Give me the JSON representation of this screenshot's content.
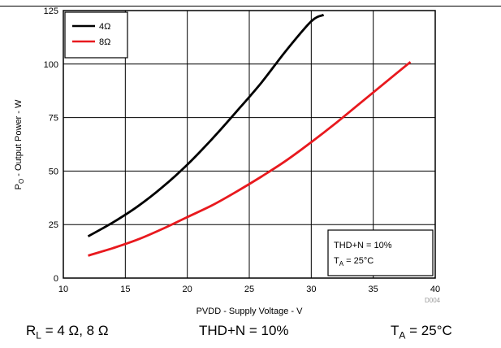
{
  "chart_data": {
    "type": "line",
    "xlabel": "PVDD - Supply Voltage - V",
    "ylabel_parts": [
      "P",
      "O",
      " - Output Power - W"
    ],
    "xlim": [
      10,
      40
    ],
    "ylim": [
      0,
      125
    ],
    "x_ticks": [
      10,
      15,
      20,
      25,
      30,
      35,
      40
    ],
    "y_ticks": [
      0,
      25,
      50,
      75,
      100,
      125
    ],
    "grid": true,
    "legend_position": "top-left",
    "series": [
      {
        "name": "4Ω",
        "color": "#000000",
        "x": [
          12,
          14,
          16,
          18,
          20,
          22,
          24,
          26,
          28,
          30,
          31
        ],
        "y": [
          19.5,
          26,
          33.5,
          42.5,
          53,
          65,
          78,
          91.5,
          106.5,
          120,
          123
        ]
      },
      {
        "name": "8Ω",
        "color": "#e8191e",
        "x": [
          12,
          14,
          16,
          18,
          20,
          22,
          24,
          26,
          28,
          30,
          32,
          34,
          36,
          38
        ],
        "y": [
          10.5,
          14,
          18,
          23,
          28.5,
          34,
          40.5,
          47.5,
          55,
          63.5,
          72.5,
          82,
          91.5,
          101
        ]
      }
    ],
    "annotation_lines": [
      {
        "text": "THD+N = 10%"
      },
      {
        "parts": [
          "T",
          "A",
          " = 25°C"
        ]
      }
    ],
    "figure_id": "D004"
  },
  "caption": {
    "load_parts": [
      "R",
      "L",
      " = 4 Ω, 8 Ω"
    ],
    "thd": "THD+N = 10%",
    "temp_parts": [
      "T",
      "A",
      " = 25°C"
    ]
  }
}
